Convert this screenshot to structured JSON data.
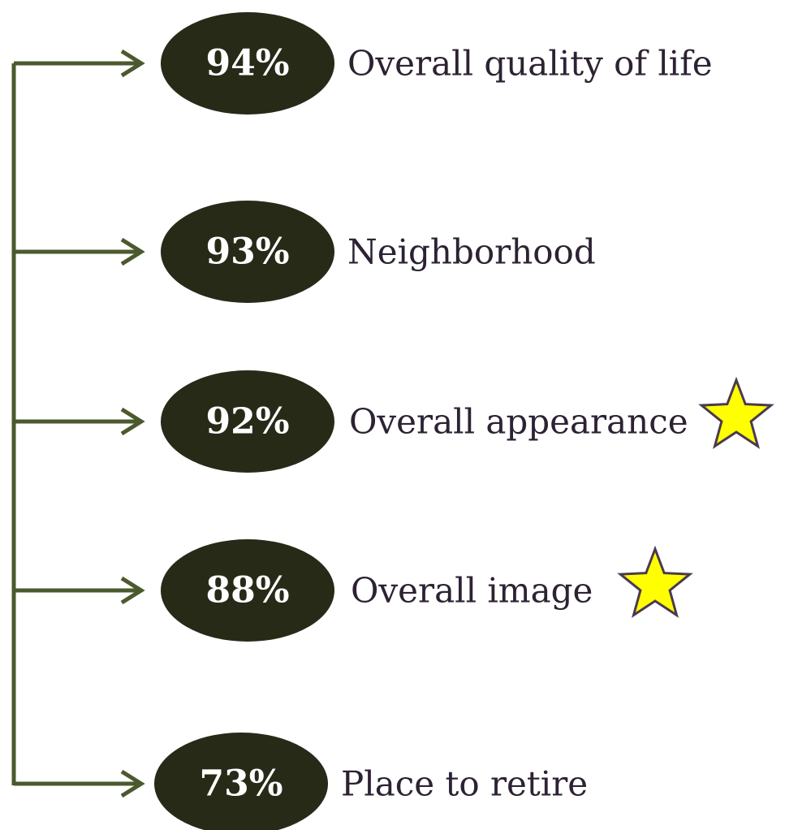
{
  "items": [
    {
      "value": "94%",
      "label": "Overall quality of life",
      "star": false
    },
    {
      "value": "93%",
      "label": "Neighborhood",
      "star": false
    },
    {
      "value": "92%",
      "label": "Overall appearance",
      "star": true
    },
    {
      "value": "88%",
      "label": "Overall image",
      "star": true
    },
    {
      "value": "73%",
      "label": "Place to retire",
      "star": false
    }
  ]
}
